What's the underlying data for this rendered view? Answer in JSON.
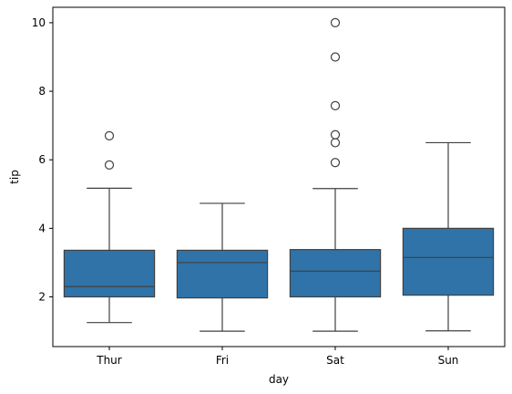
{
  "chart_data": {
    "type": "box",
    "xlabel": "day",
    "ylabel": "tip",
    "ylim": [
      0.55,
      10.45
    ],
    "yticks": [
      2,
      4,
      6,
      8,
      10
    ],
    "box_color": "#2f73a8",
    "line_color": "#404040",
    "categories": [
      "Thur",
      "Fri",
      "Sat",
      "Sun"
    ],
    "boxes": [
      {
        "category": "Thur",
        "q1": 2.0,
        "median": 2.3,
        "q3": 3.36,
        "whisker_low": 1.25,
        "whisker_high": 5.17,
        "outliers": [
          5.85,
          6.7
        ]
      },
      {
        "category": "Fri",
        "q1": 1.97,
        "median": 3.0,
        "q3": 3.36,
        "whisker_low": 1.0,
        "whisker_high": 4.73,
        "outliers": []
      },
      {
        "category": "Sat",
        "q1": 2.0,
        "median": 2.75,
        "q3": 3.38,
        "whisker_low": 1.0,
        "whisker_high": 5.16,
        "outliers": [
          5.92,
          6.5,
          6.73,
          7.58,
          9.0,
          10.0
        ]
      },
      {
        "category": "Sun",
        "q1": 2.05,
        "median": 3.15,
        "q3": 4.0,
        "whisker_low": 1.01,
        "whisker_high": 6.5,
        "outliers": []
      }
    ]
  }
}
